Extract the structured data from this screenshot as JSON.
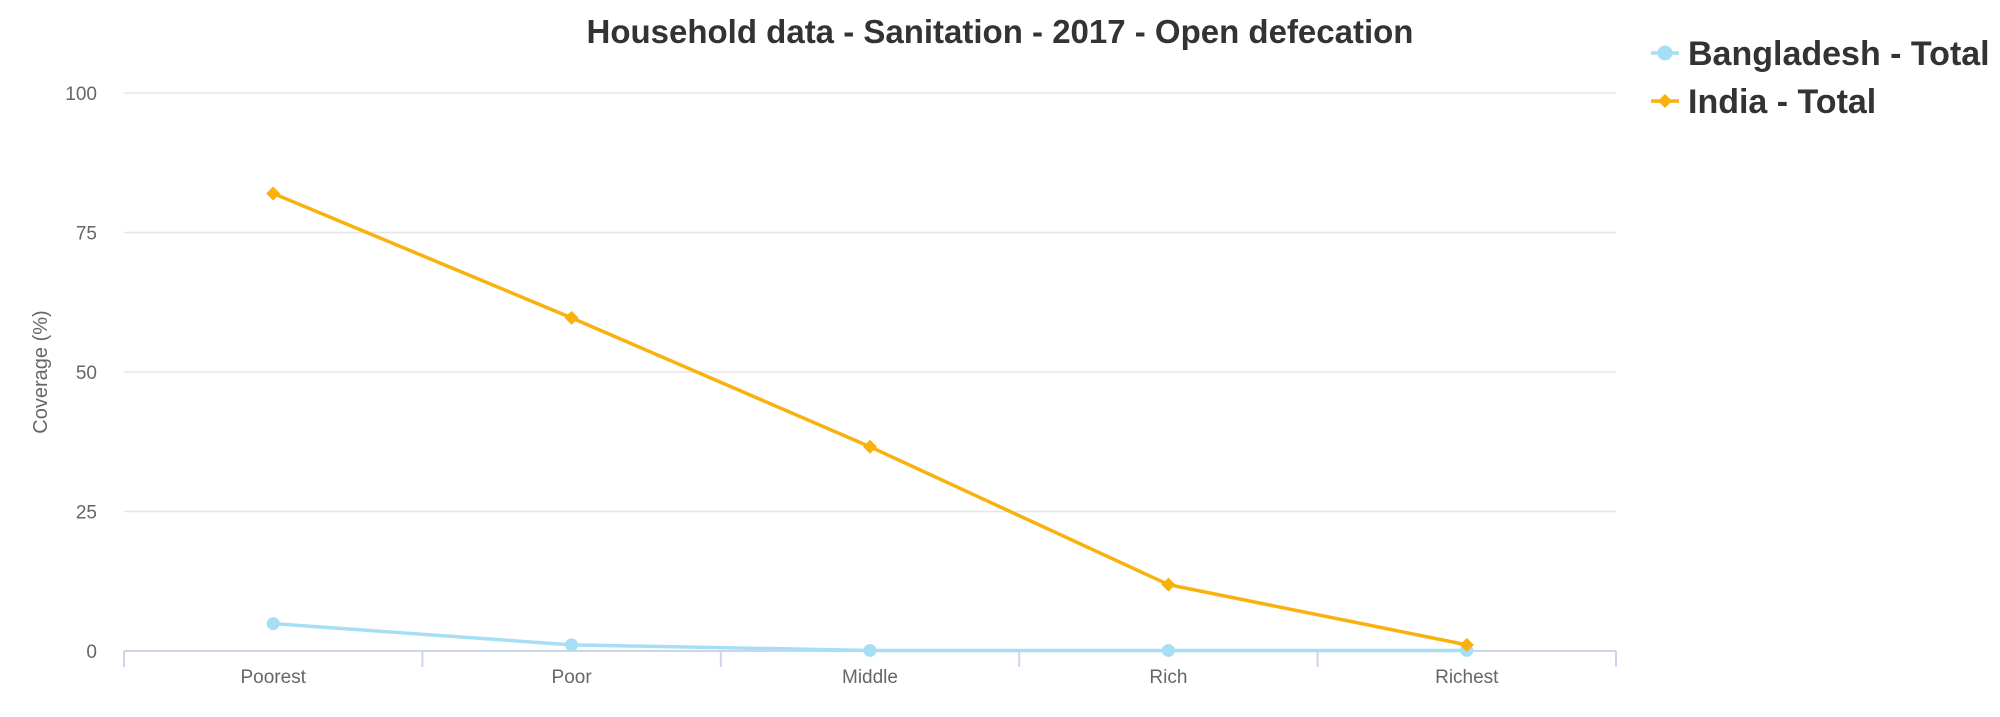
{
  "chart_data": {
    "type": "line",
    "title": "Household data - Sanitation - 2017 - Open defecation",
    "ylabel": "Coverage (%)",
    "xlabel": "",
    "categories": [
      "Poorest",
      "Poor",
      "Middle",
      "Rich",
      "Richest"
    ],
    "ylim": [
      0,
      100
    ],
    "yticks": [
      0,
      25,
      50,
      75,
      100
    ],
    "grid": true,
    "legend_position": "top-right",
    "series": [
      {
        "name": "Bangladesh - Total",
        "values": [
          4.9,
          1.1,
          0.1,
          0.1,
          0.1
        ],
        "color": "#a6dff5",
        "marker": "circle"
      },
      {
        "name": "India - Total",
        "values": [
          82,
          59.7,
          36.6,
          11.9,
          1.1
        ],
        "color": "#f9b10d",
        "marker": "diamond"
      }
    ]
  }
}
